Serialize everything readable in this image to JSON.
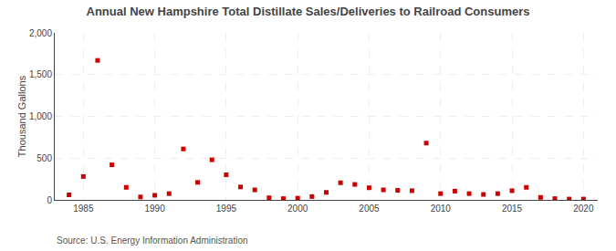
{
  "chart_data": {
    "type": "scatter",
    "title": "Annual New Hampshire Total Distillate Sales/Deliveries to Railroad Consumers",
    "y_label": "Thousand Gallons",
    "annotations": [
      "Source: U.S. Energy Information Administration"
    ],
    "x": [
      1984,
      1985,
      1986,
      1987,
      1988,
      1989,
      1990,
      1991,
      1992,
      1993,
      1994,
      1995,
      1996,
      1997,
      1998,
      1999,
      2000,
      2001,
      2002,
      2003,
      2004,
      2005,
      2006,
      2007,
      2008,
      2009,
      2010,
      2011,
      2012,
      2013,
      2014,
      2015,
      2016,
      2017,
      2018,
      2019,
      2020
    ],
    "values": [
      60,
      280,
      1670,
      420,
      150,
      35,
      55,
      75,
      610,
      210,
      480,
      300,
      155,
      120,
      25,
      15,
      20,
      40,
      90,
      205,
      185,
      145,
      120,
      115,
      110,
      680,
      75,
      105,
      75,
      65,
      75,
      110,
      150,
      30,
      15,
      10,
      10
    ],
    "color": "#cc0000",
    "marker": "square",
    "xlim": [
      1983,
      2021
    ],
    "xticks": [
      1985,
      1990,
      1995,
      2000,
      2005,
      2010,
      2015,
      2020
    ],
    "ylim": [
      0,
      2000
    ],
    "yticks": [
      0,
      500,
      {
        "value": 1000,
        "label": "1,000"
      },
      {
        "value": 1500,
        "label": "1,500"
      },
      {
        "value": 2000,
        "label": "2,000"
      }
    ],
    "grid": true
  }
}
